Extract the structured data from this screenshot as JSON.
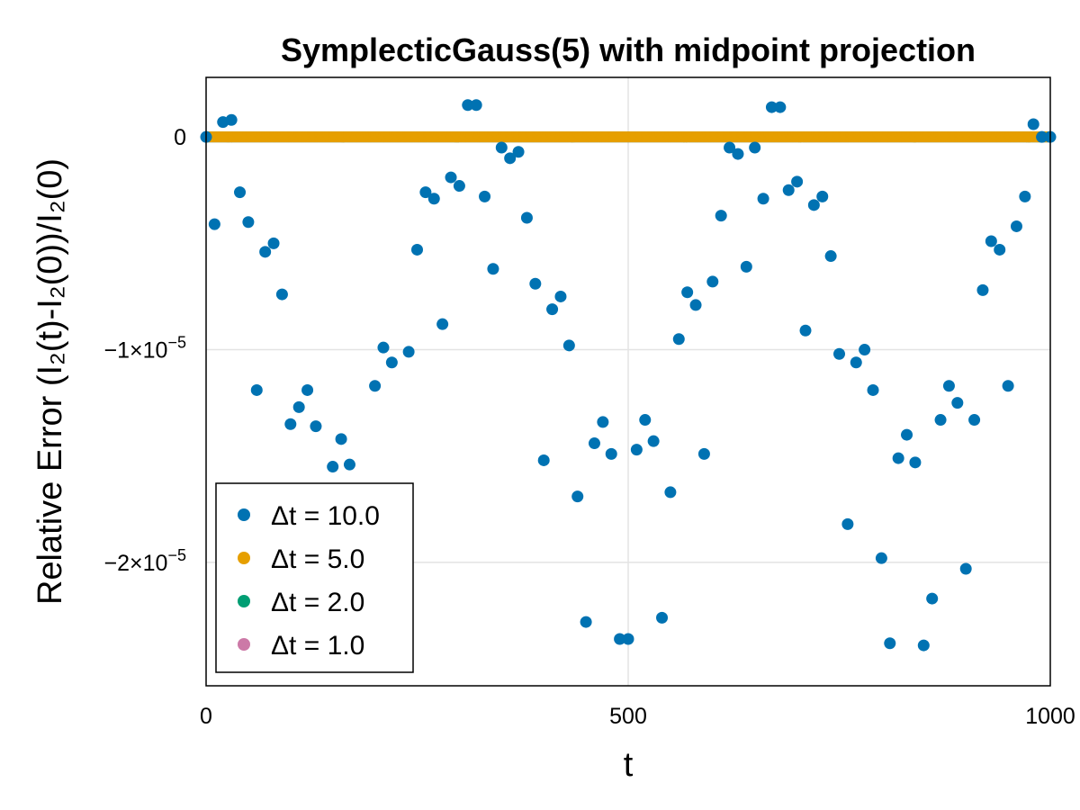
{
  "chart_data": {
    "type": "scatter",
    "title": "SymplecticGauss(5) with midpoint projection",
    "xlabel": "t",
    "ylabel": "Relative Error (I₂(t)-I₂(0))/I₂(0)",
    "xlim": [
      0,
      1000
    ],
    "ylim": [
      -2.58e-05,
      2.8e-06
    ],
    "grid": true,
    "legend_position": "bottom-left",
    "x_ticks": [
      {
        "value": 0,
        "label": "0"
      },
      {
        "value": 500,
        "label": "500"
      },
      {
        "value": 1000,
        "label": "1000"
      }
    ],
    "y_ticks": [
      {
        "value": 0,
        "label": "0",
        "mantissa": "0",
        "exponent": ""
      },
      {
        "value": -1e-05,
        "label": "−1×10⁻⁵",
        "mantissa": "−1×10",
        "exponent": "−5"
      },
      {
        "value": -2e-05,
        "label": "−2×10⁻⁵",
        "mantissa": "−2×10",
        "exponent": "−5"
      }
    ],
    "series": [
      {
        "name": "Δt = 10.0",
        "color": "#0072b2",
        "x": [
          0,
          10,
          20,
          30,
          40,
          50,
          60,
          70,
          80,
          90,
          100,
          110,
          120,
          130,
          140,
          150,
          160,
          170,
          180,
          190,
          200,
          210,
          220,
          230,
          240,
          250,
          260,
          270,
          280,
          290,
          300,
          310,
          320,
          330,
          340,
          350,
          360,
          370,
          380,
          390,
          400,
          410,
          420,
          430,
          440,
          450,
          460,
          470,
          480,
          490,
          500,
          510,
          520,
          530,
          540,
          550,
          560,
          570,
          580,
          590,
          600,
          610,
          620,
          630,
          640,
          650,
          660,
          670,
          680,
          690,
          700,
          710,
          720,
          730,
          740,
          750,
          760,
          770,
          780,
          790,
          800,
          810,
          820,
          830,
          840,
          850,
          860,
          870,
          880,
          890,
          900,
          910,
          920,
          930,
          940,
          950,
          960,
          970,
          980,
          990,
          1000
        ],
        "y": [
          0,
          -4.1e-06,
          7e-07,
          8e-07,
          -2.6e-06,
          -4e-06,
          -1.19e-05,
          -5.4e-06,
          -5e-06,
          -7.4e-06,
          -1.35e-05,
          -1.27e-05,
          -1.19e-05,
          -1.36e-05,
          -1.84e-05,
          -1.55e-05,
          -1.42e-05,
          -1.54e-05,
          -1.83e-05,
          -1.94e-05,
          -1.17e-05,
          -9.9e-06,
          -1.06e-05,
          -1.81e-05,
          -1.01e-05,
          -5.3e-06,
          -2.6e-06,
          -2.9e-06,
          -8.8e-06,
          -1.9e-06,
          -2.3e-06,
          1.5e-06,
          1.5e-06,
          -2.8e-06,
          -6.2e-06,
          -5e-07,
          -1e-06,
          -7e-07,
          -3.8e-06,
          -6.9e-06,
          -1.52e-05,
          -8.1e-06,
          -7.5e-06,
          -9.8e-06,
          -1.69e-05,
          -2.28e-05,
          -1.44e-05,
          -1.34e-05,
          -1.49e-05,
          -2.36e-05,
          -2.36e-05,
          -1.47e-05,
          -1.33e-05,
          -1.43e-05,
          -2.26e-05,
          -1.67e-05,
          -9.5e-06,
          -7.3e-06,
          -7.9e-06,
          -1.49e-05,
          -6.8e-06,
          -3.7e-06,
          -5e-07,
          -8e-07,
          -6.1e-06,
          -5e-07,
          -2.9e-06,
          1.4e-06,
          1.4e-06,
          -2.5e-06,
          -2.1e-06,
          -9.1e-06,
          -3.2e-06,
          -2.8e-06,
          -5.6e-06,
          -1.02e-05,
          -1.82e-05,
          -1.06e-05,
          -1e-05,
          -1.19e-05,
          -1.98e-05,
          -2.38e-05,
          -1.51e-05,
          -1.4e-05,
          -1.53e-05,
          -2.39e-05,
          -2.17e-05,
          -1.33e-05,
          -1.17e-05,
          -1.25e-05,
          -2.03e-05,
          -1.33e-05,
          -7.2e-06,
          -4.9e-06,
          -5.3e-06,
          -1.17e-05,
          -4.2e-06,
          -2.8e-06,
          6e-07,
          0,
          0
        ]
      },
      {
        "name": "Δt = 5.0",
        "color": "#e69f00",
        "x": [
          0,
          1000
        ],
        "y": [
          0,
          0
        ]
      },
      {
        "name": "Δt = 2.0",
        "color": "#009e73",
        "x": [
          0,
          1000
        ],
        "y": [
          0,
          0
        ]
      },
      {
        "name": "Δt = 1.0",
        "color": "#cc79a7",
        "x": [
          0,
          1000
        ],
        "y": [
          0,
          0
        ]
      }
    ]
  }
}
